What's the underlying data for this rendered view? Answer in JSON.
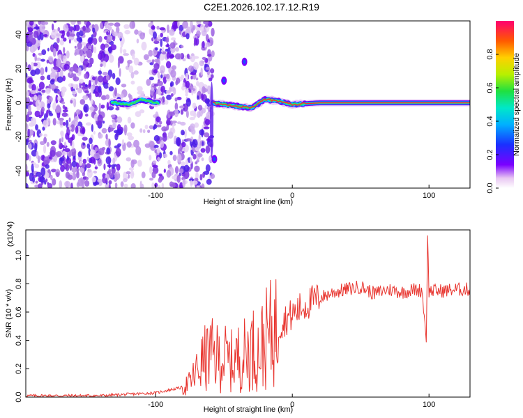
{
  "title": "C2E1.2026.102.17.12.R19",
  "chart_data": [
    {
      "type": "heatmap",
      "xlabel": "Height of straight line (km)",
      "ylabel": "Frequency (Hz)",
      "xlim": [
        -195,
        130
      ],
      "ylim": [
        -50,
        48
      ],
      "xticks": [
        -100,
        0,
        100
      ],
      "yticks": [
        -40,
        -20,
        0,
        20,
        40
      ],
      "colorbar": {
        "label": "Normalized spectral amplitude",
        "range": [
          0,
          1
        ],
        "ticks": [
          "0.0",
          "0.2",
          "0.4",
          "0.6",
          "0.8"
        ]
      },
      "line_center": [
        [
          -130,
          0
        ],
        [
          -120,
          -1
        ],
        [
          -110,
          2
        ],
        [
          -100,
          0
        ],
        [
          -60,
          0
        ],
        [
          -50,
          -1
        ],
        [
          -40,
          -2
        ],
        [
          -30,
          -3
        ],
        [
          -20,
          2
        ],
        [
          -10,
          1
        ],
        [
          0,
          -1
        ],
        [
          20,
          0
        ],
        [
          60,
          0
        ],
        [
          90,
          0
        ],
        [
          100,
          0
        ],
        [
          130,
          0
        ]
      ],
      "blobs": [
        [
          -35,
          24
        ],
        [
          -50,
          13
        ],
        [
          -57,
          -33
        ]
      ]
    },
    {
      "type": "line",
      "xlabel": "Height of straight line (km)",
      "ylabel": "SNR (10 * v/v)",
      "multiplier": "(x10^4)",
      "xlim": [
        -195,
        130
      ],
      "ylim": [
        0,
        1.18
      ],
      "xticks": [
        -100,
        0,
        100
      ],
      "yticks": [
        0.0,
        0.2,
        0.4,
        0.6,
        0.8,
        1.0
      ],
      "series": [
        {
          "color": "#e8352f",
          "points": [
            [
              -195,
              0.01
            ],
            [
              -180,
              0.01
            ],
            [
              -160,
              0.01
            ],
            [
              -140,
              0.01
            ],
            [
              -120,
              0.02
            ],
            [
              -100,
              0.03
            ],
            [
              -90,
              0.05
            ],
            [
              -80,
              0.07
            ],
            [
              -75,
              0.1
            ],
            [
              -70,
              0.18
            ],
            [
              -65,
              0.26
            ],
            [
              -60,
              0.3
            ],
            [
              -55,
              0.28
            ],
            [
              -50,
              0.28
            ],
            [
              -45,
              0.25
            ],
            [
              -40,
              0.28
            ],
            [
              -35,
              0.3
            ],
            [
              -30,
              0.35
            ],
            [
              -25,
              0.32
            ],
            [
              -20,
              0.4
            ],
            [
              -15,
              0.45
            ],
            [
              -10,
              0.5
            ],
            [
              -5,
              0.55
            ],
            [
              0,
              0.58
            ],
            [
              5,
              0.62
            ],
            [
              10,
              0.65
            ],
            [
              15,
              0.68
            ],
            [
              20,
              0.7
            ],
            [
              25,
              0.72
            ],
            [
              30,
              0.74
            ],
            [
              40,
              0.76
            ],
            [
              50,
              0.78
            ],
            [
              60,
              0.73
            ],
            [
              70,
              0.76
            ],
            [
              80,
              0.74
            ],
            [
              90,
              0.76
            ],
            [
              95,
              0.75
            ],
            [
              98,
              0.4
            ],
            [
              99,
              1.15
            ],
            [
              100,
              0.75
            ],
            [
              110,
              0.75
            ],
            [
              120,
              0.76
            ],
            [
              130,
              0.76
            ]
          ]
        }
      ]
    }
  ]
}
